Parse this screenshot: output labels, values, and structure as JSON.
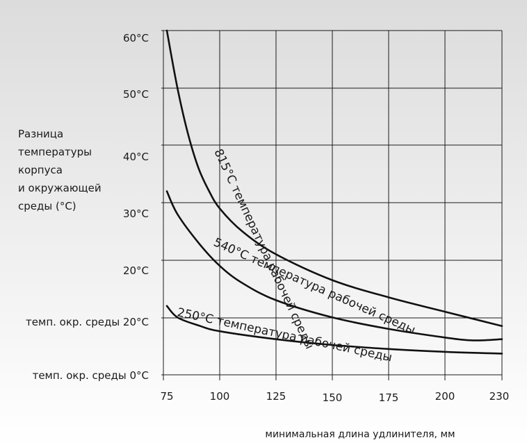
{
  "chart_data": {
    "type": "line",
    "xlabel": "минимальная длина удлинителя, мм",
    "ylabel_lines": [
      "Разница",
      "температуры",
      "корпуса",
      "и окружающей",
      "среды (°C)"
    ],
    "x_ticks": [
      "75",
      "100",
      "125",
      "150",
      "175",
      "200",
      "230"
    ],
    "y_ticks": [
      "темп. окр. среды  0°C",
      "темп. окр. среды 20°C",
      "20°C",
      "30°C",
      "40°C",
      "50°C",
      "60°C"
    ],
    "grid": true,
    "series": [
      {
        "name": "815°C температура рабочей среды",
        "points": [
          [
            75,
            60
          ],
          [
            80,
            50
          ],
          [
            85,
            42
          ],
          [
            90,
            36
          ],
          [
            95,
            32
          ],
          [
            100,
            29
          ],
          [
            110,
            25
          ],
          [
            125,
            21
          ],
          [
            150,
            16.5
          ],
          [
            175,
            13.5
          ],
          [
            200,
            11
          ],
          [
            230,
            8.5
          ]
        ]
      },
      {
        "name": "540°C температура рабочей среды",
        "points": [
          [
            75,
            32
          ],
          [
            80,
            28
          ],
          [
            90,
            23
          ],
          [
            100,
            19
          ],
          [
            110,
            16
          ],
          [
            125,
            13
          ],
          [
            150,
            10
          ],
          [
            175,
            8
          ],
          [
            200,
            6.5
          ],
          [
            215,
            6
          ],
          [
            230,
            6.2
          ]
        ]
      },
      {
        "name": "250°C температура рабочей среды",
        "points": [
          [
            75,
            12
          ],
          [
            80,
            10
          ],
          [
            90,
            8.6
          ],
          [
            100,
            7.6
          ],
          [
            125,
            6.2
          ],
          [
            150,
            5.2
          ],
          [
            175,
            4.5
          ],
          [
            200,
            4.0
          ],
          [
            230,
            3.7
          ]
        ]
      }
    ]
  }
}
